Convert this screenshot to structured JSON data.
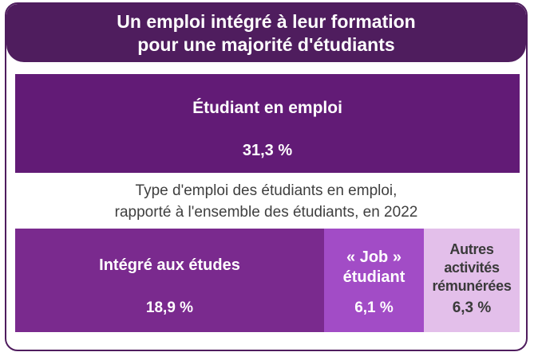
{
  "header": {
    "title_line1": "Un emploi intégré à leur formation",
    "title_line2": "pour une majorité d'étudiants"
  },
  "total": {
    "label": "Étudiant en emploi",
    "value": "31,3 %"
  },
  "caption": {
    "line1": "Type d'emploi des étudiants en emploi,",
    "line2": "rapporté à l'ensemble des étudiants, en 2022"
  },
  "breakdown": [
    {
      "label_lines": [
        "Intégré aux études"
      ],
      "value": "18,9 %",
      "color": "#7a2a8e"
    },
    {
      "label_lines": [
        "« Job »",
        "étudiant"
      ],
      "value": "6,1 %",
      "color": "#a24cc6"
    },
    {
      "label_lines": [
        "Autres",
        "activités",
        "rémunérées"
      ],
      "value": "6,3 %",
      "color": "#e3bfea"
    }
  ],
  "colors": {
    "header_bg": "#4f1d5e",
    "total_bg": "#621b76",
    "border": "#4f1d5e"
  }
}
